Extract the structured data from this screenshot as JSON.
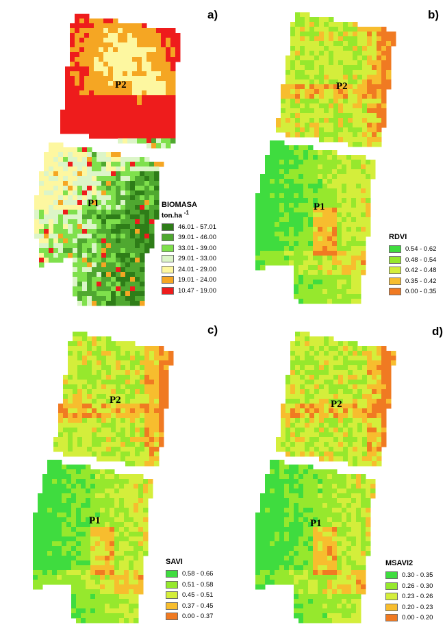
{
  "panels": [
    {
      "letter": "a)",
      "p2_label": "P2",
      "p1_label": "P1",
      "legend": {
        "title": "BIOMASA",
        "unit": "ton.ha",
        "unit_exp": "-1",
        "classes": [
          {
            "label": "46.01 - 57.01",
            "color": "#2e7d18"
          },
          {
            "label": "39.01 - 46.00",
            "color": "#4fa830"
          },
          {
            "label": "33.01 - 39.00",
            "color": "#7fe04c"
          },
          {
            "label": "29.01 - 33.00",
            "color": "#dcf5c8"
          },
          {
            "label": "24.01 - 29.00",
            "color": "#fdf7a0"
          },
          {
            "label": "19.01 - 24.00",
            "color": "#f5a623"
          },
          {
            "label": "10.47 - 19.00",
            "color": "#ee1c1c"
          }
        ]
      }
    },
    {
      "letter": "b)",
      "p2_label": "P2",
      "p1_label": "P1",
      "legend": {
        "title": "RDVI",
        "classes": [
          {
            "label": "0.54 - 0.62",
            "color": "#3fdc3f"
          },
          {
            "label": "0.48 - 0.54",
            "color": "#96e82d"
          },
          {
            "label": "0.42 - 0.48",
            "color": "#d4ee3b"
          },
          {
            "label": "0.35 - 0.42",
            "color": "#f7bd2e"
          },
          {
            "label": "0.00 - 0.35",
            "color": "#f07a22"
          }
        ]
      }
    },
    {
      "letter": "c)",
      "p2_label": "P2",
      "p1_label": "P1",
      "legend": {
        "title": "SAVI",
        "classes": [
          {
            "label": "0.58 - 0.66",
            "color": "#3fdc3f"
          },
          {
            "label": "0.51 - 0.58",
            "color": "#96e82d"
          },
          {
            "label": "0.45 - 0.51",
            "color": "#d4ee3b"
          },
          {
            "label": "0.37 - 0.45",
            "color": "#f7bd2e"
          },
          {
            "label": "0.00 - 0.37",
            "color": "#f07a22"
          }
        ]
      }
    },
    {
      "letter": "d)",
      "p2_label": "P2",
      "p1_label": "P1",
      "legend": {
        "title": "MSAVI2",
        "classes": [
          {
            "label": "0.30 - 0.35",
            "color": "#3fdc3f"
          },
          {
            "label": "0.26 - 0.30",
            "color": "#96e82d"
          },
          {
            "label": "0.23 - 0.26",
            "color": "#d4ee3b"
          },
          {
            "label": "0.20 - 0.23",
            "color": "#f7bd2e"
          },
          {
            "label": "0.00 - 0.20",
            "color": "#f07a22"
          }
        ]
      }
    }
  ]
}
